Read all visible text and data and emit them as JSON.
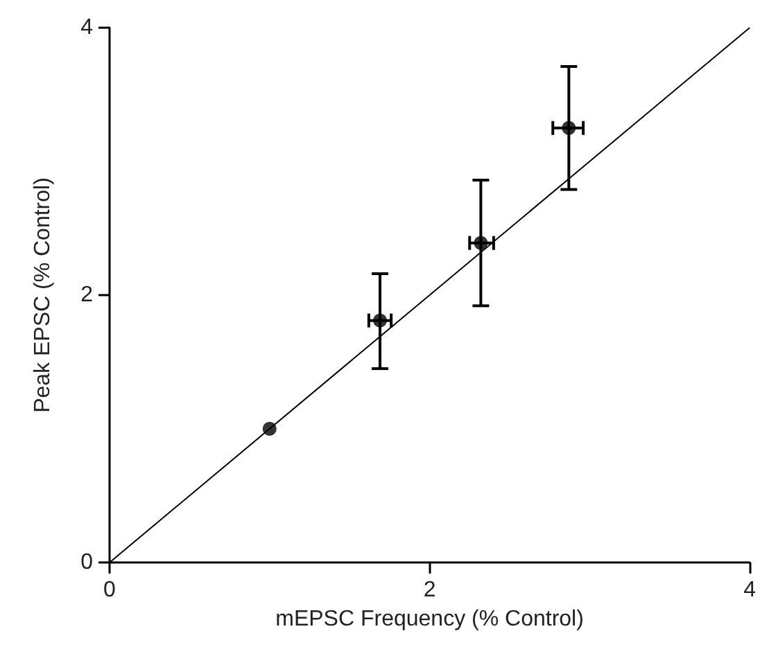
{
  "chart_data": {
    "type": "scatter",
    "xlabel": "mEPSC Frequency (% Control)",
    "ylabel": "Peak EPSC (% Control)",
    "xlim": [
      0,
      4
    ],
    "ylim": [
      0,
      4
    ],
    "xticks": [
      0,
      2,
      4
    ],
    "yticks": [
      0,
      2,
      4
    ],
    "grid": false,
    "series": [
      {
        "color": "#000000",
        "marker": "circle",
        "x": [
          1.0,
          1.69,
          2.32,
          2.87
        ],
        "values": [
          1.0,
          1.81,
          2.39,
          3.25
        ],
        "errors": [
          null,
          [
            1.45,
            2.16
          ],
          [
            1.92,
            2.86
          ],
          [
            2.79,
            3.71
          ]
        ],
        "xerrors": [
          null,
          [
            1.62,
            1.76
          ],
          [
            2.25,
            2.4
          ],
          [
            2.77,
            2.96
          ]
        ]
      },
      {
        "type": "line",
        "color": "#000000",
        "marker": "none",
        "line_style": "solid",
        "x": [
          0,
          4
        ],
        "values": [
          0,
          4
        ]
      }
    ]
  }
}
